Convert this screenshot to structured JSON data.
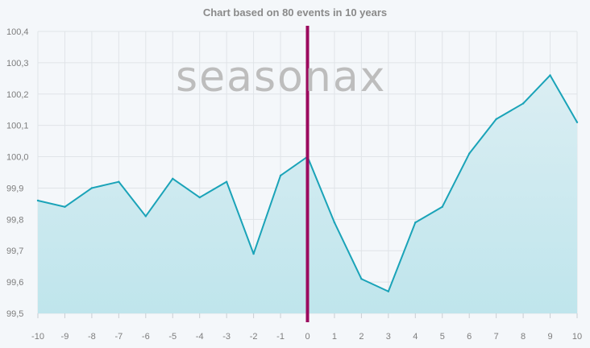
{
  "page": {
    "title": "Chart based on 80 events in 10 years",
    "watermark": "seasonax"
  },
  "colors": {
    "line": "#1aa3b8",
    "area_top": "#dbeef3",
    "area_bottom": "#bfe5ec",
    "marker": "#9b0a5e",
    "grid": "#e0e4e8",
    "background": "#f4f7fa"
  },
  "chart_data": {
    "type": "area",
    "title": "Chart based on 80 events in 10 years",
    "xlabel": "",
    "ylabel": "",
    "x": [
      -10,
      -9,
      -8,
      -7,
      -6,
      -5,
      -4,
      -3,
      -2,
      -1,
      0,
      1,
      2,
      3,
      4,
      5,
      6,
      7,
      8,
      9,
      10
    ],
    "series": [
      {
        "values": [
          99.86,
          99.84,
          99.9,
          99.92,
          99.81,
          99.93,
          99.87,
          99.92,
          99.69,
          99.94,
          100.0,
          99.79,
          99.61,
          99.57,
          99.79,
          99.84,
          100.01,
          100.12,
          100.17,
          100.26,
          100.11
        ]
      }
    ],
    "xlim": [
      -10,
      10
    ],
    "ylim": [
      99.5,
      100.4
    ],
    "x_ticks": [
      "-10",
      "-9",
      "-8",
      "-7",
      "-6",
      "-5",
      "-4",
      "-3",
      "-2",
      "-1",
      "0",
      "1",
      "2",
      "3",
      "4",
      "5",
      "6",
      "7",
      "8",
      "9",
      "10"
    ],
    "y_ticks": [
      "99,5",
      "99,6",
      "99,7",
      "99,8",
      "99,9",
      "100,0",
      "100,1",
      "100,2",
      "100,3",
      "100,4"
    ],
    "vertical_marker_x": 0,
    "grid": true,
    "legend": "none"
  }
}
